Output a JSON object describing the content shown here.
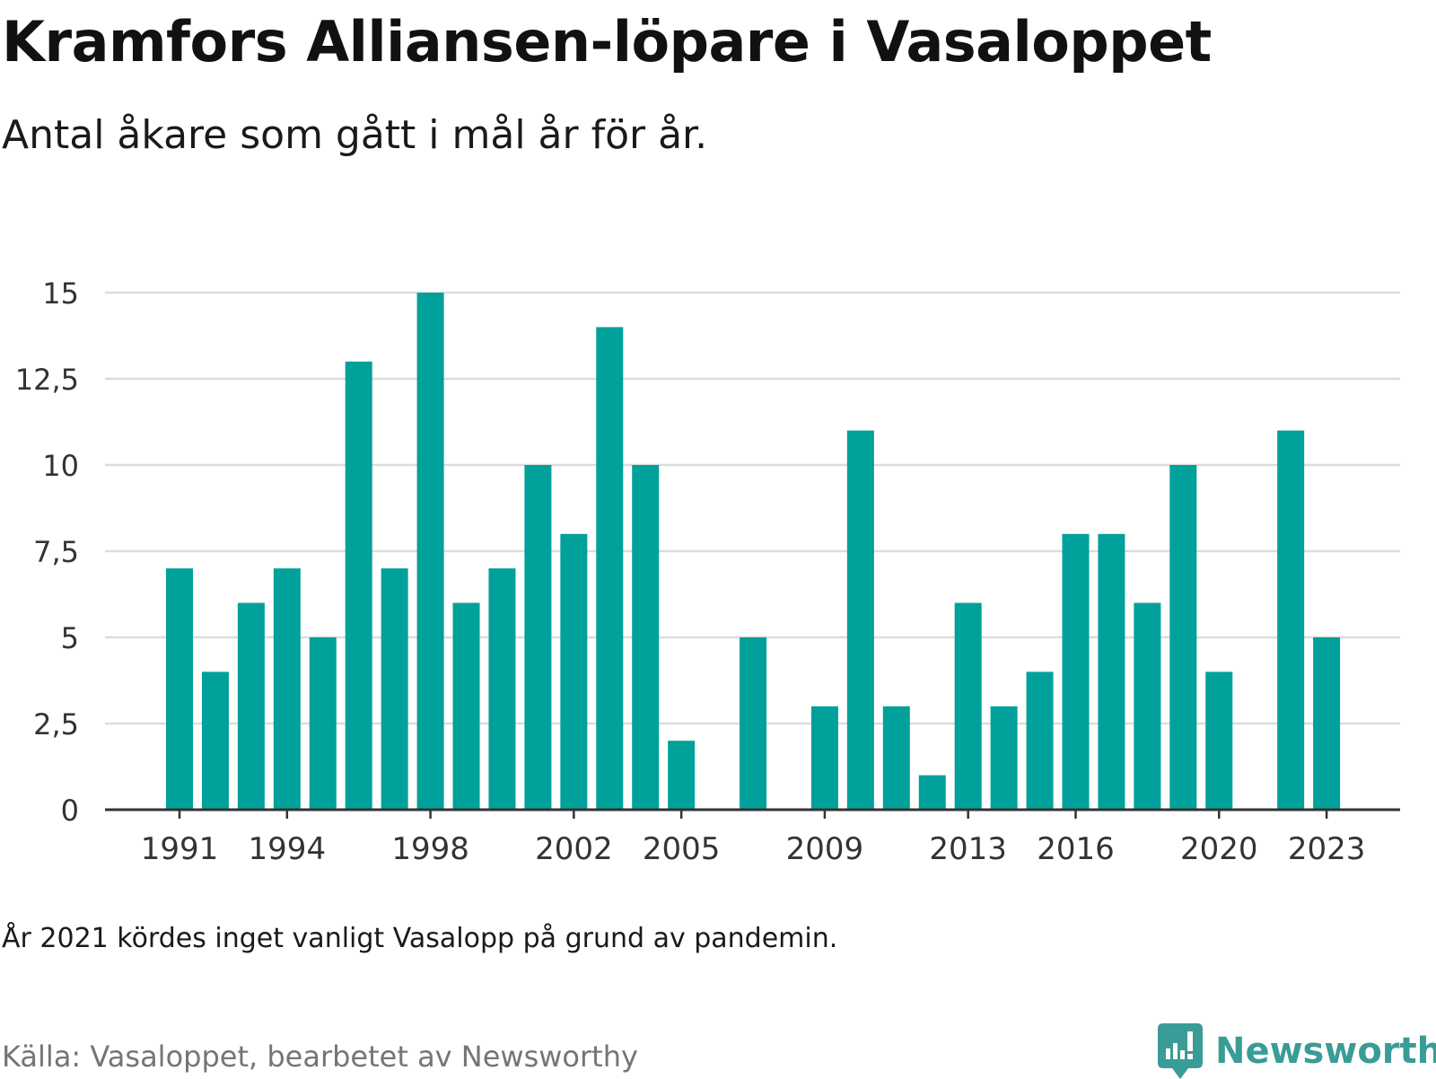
{
  "title": "Kramfors Alliansen-löpare i Vasaloppet",
  "subtitle": "Antal åkare som gått i mål år för år.",
  "note": "År 2021 kördes inget vanligt Vasalopp på grund av pandemin.",
  "source": "Källa: Vasaloppet, bearbetet av Newsworthy",
  "brand": {
    "name": "Newsworthy",
    "icon": "newsworthy-logo-icon",
    "color": "#3a9c96"
  },
  "colors": {
    "bar": "#00a19a",
    "grid": "#dcdcdc",
    "axis": "#333333"
  },
  "chart_data": {
    "type": "bar",
    "x": [
      1991,
      1992,
      1993,
      1994,
      1995,
      1996,
      1997,
      1998,
      1999,
      2000,
      2001,
      2002,
      2003,
      2004,
      2005,
      2006,
      2007,
      2008,
      2009,
      2010,
      2011,
      2012,
      2013,
      2014,
      2015,
      2016,
      2017,
      2018,
      2019,
      2020,
      2021,
      2022,
      2023
    ],
    "values": [
      7,
      4,
      6,
      7,
      5,
      13,
      7,
      15,
      6,
      7,
      10,
      8,
      14,
      10,
      2,
      0,
      5,
      0,
      3,
      11,
      3,
      1,
      6,
      3,
      4,
      8,
      8,
      6,
      10,
      4,
      0,
      11,
      5
    ],
    "ylim": [
      0,
      15
    ],
    "yticks": [
      0,
      2.5,
      5,
      7.5,
      10,
      12.5,
      15
    ],
    "ytick_labels": [
      "0",
      "2,5",
      "5",
      "7,5",
      "10",
      "12,5",
      "15"
    ],
    "xticks": [
      1991,
      1994,
      1998,
      2002,
      2005,
      2009,
      2013,
      2016,
      2020,
      2023
    ],
    "xtick_labels": [
      "1991",
      "1994",
      "1998",
      "2002",
      "2005",
      "2009",
      "2013",
      "2016",
      "2020",
      "2023"
    ],
    "grid": true
  }
}
